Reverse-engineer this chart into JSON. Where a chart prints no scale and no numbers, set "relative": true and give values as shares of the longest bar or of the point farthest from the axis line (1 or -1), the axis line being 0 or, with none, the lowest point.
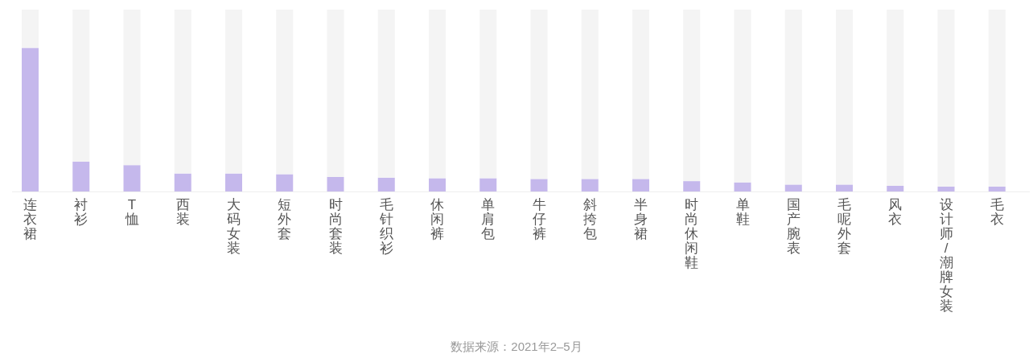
{
  "chart_data": {
    "type": "bar",
    "relative": true,
    "stacked": true,
    "categories": [
      "连衣裙",
      "衬衫",
      "T恤",
      "西装",
      "大码女装",
      "短外套",
      "时尚套装",
      "毛针织衫",
      "休闲裤",
      "单肩包",
      "牛仔裤",
      "斜挎包",
      "半身裙",
      "时尚休闲鞋",
      "单鞋",
      "国产腕表",
      "毛呢外套",
      "风衣",
      "设计师/潮牌女装",
      "毛衣"
    ],
    "series": [
      {
        "color": "#c5b8ec",
        "values": [
          0.79,
          0.164,
          0.145,
          0.099,
          0.099,
          0.095,
          0.08,
          0.076,
          0.073,
          0.073,
          0.069,
          0.069,
          0.069,
          0.057,
          0.05,
          0.038,
          0.038,
          0.031,
          0.027,
          0.027
        ]
      },
      {
        "color": "#f4f4f4",
        "values": [
          0.21,
          0.836,
          0.855,
          0.901,
          0.901,
          0.905,
          0.92,
          0.924,
          0.927,
          0.927,
          0.931,
          0.931,
          0.931,
          0.943,
          0.95,
          0.962,
          0.962,
          0.969,
          0.973,
          0.973
        ]
      }
    ],
    "annotations": [
      "数据来源：2021年2–5月"
    ]
  }
}
